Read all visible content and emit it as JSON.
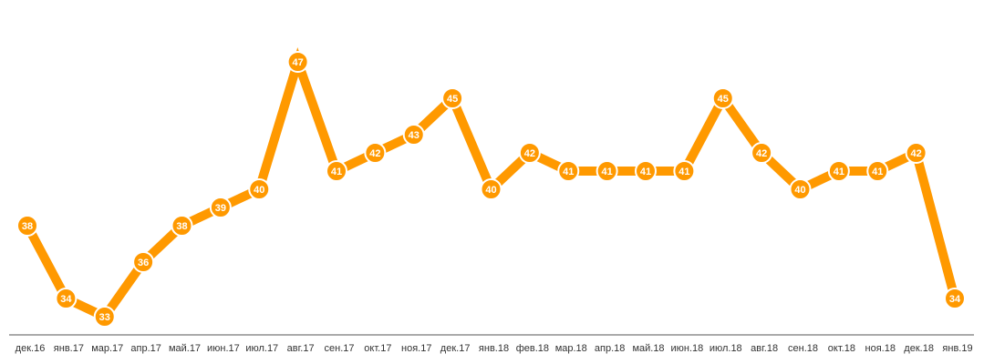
{
  "chart_data": {
    "type": "line",
    "categories": [
      "дек.16",
      "янв.17",
      "мар.17",
      "апр.17",
      "май.17",
      "июн.17",
      "июл.17",
      "авг.17",
      "сен.17",
      "окт.17",
      "ноя.17",
      "дек.17",
      "янв.18",
      "фев.18",
      "мар.18",
      "апр.18",
      "май.18",
      "июн.18",
      "июл.18",
      "авг.18",
      "сен.18",
      "окт.18",
      "ноя.18",
      "дек.18",
      "янв.19"
    ],
    "values": [
      38,
      34,
      33,
      36,
      38,
      39,
      40,
      47,
      41,
      42,
      43,
      45,
      40,
      42,
      41,
      41,
      41,
      41,
      45,
      42,
      40,
      41,
      41,
      42,
      34
    ],
    "color": "#ff9900"
  }
}
